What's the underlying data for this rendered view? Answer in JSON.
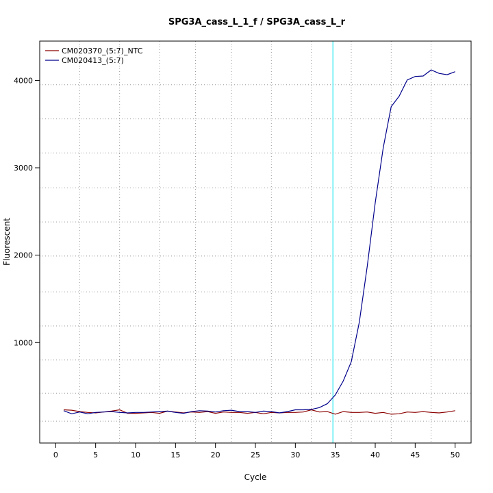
{
  "chart_data": {
    "type": "line",
    "title": "SPG3A_cass_L_1_f / SPG3A_cass_L_r",
    "xlabel": "Cycle",
    "ylabel": "Fluorescent",
    "xlim": [
      -2,
      52
    ],
    "ylim": [
      -150,
      4450
    ],
    "x_ticks": [
      0,
      5,
      10,
      15,
      20,
      25,
      30,
      35,
      40,
      45,
      50
    ],
    "y_ticks": [
      1000,
      2000,
      3000,
      4000
    ],
    "x_grid": [
      3,
      8,
      13,
      17.5,
      22,
      27,
      32,
      37,
      42,
      47
    ],
    "y_grid": [
      100,
      420,
      800,
      1190,
      1580,
      1990,
      2380,
      2770,
      3170,
      3560,
      3950
    ],
    "threshold_x": 34.7,
    "threshold_color": "#00e5ee",
    "legend_position": "top-left",
    "series": [
      {
        "name": "CM020370_(5:7)_NTC",
        "color": "#8b0000",
        "x": [
          1,
          2,
          3,
          4,
          5,
          6,
          7,
          8,
          9,
          10,
          11,
          12,
          13,
          14,
          15,
          16,
          17,
          18,
          19,
          20,
          21,
          22,
          23,
          24,
          25,
          26,
          27,
          28,
          29,
          30,
          31,
          32,
          33,
          34,
          35,
          36,
          37,
          38,
          39,
          40,
          41,
          42,
          43,
          44,
          45,
          46,
          47,
          48,
          49,
          50
        ],
        "y": [
          230,
          225,
          210,
          200,
          195,
          205,
          215,
          230,
          190,
          190,
          195,
          200,
          190,
          215,
          205,
          195,
          205,
          200,
          210,
          190,
          205,
          200,
          200,
          190,
          200,
          185,
          200,
          195,
          200,
          200,
          205,
          230,
          205,
          210,
          180,
          210,
          200,
          200,
          205,
          190,
          200,
          180,
          185,
          205,
          200,
          210,
          200,
          195,
          205,
          220
        ]
      },
      {
        "name": "CM020413_(5:7)",
        "color": "#00008b",
        "x": [
          1,
          2,
          3,
          4,
          5,
          6,
          7,
          8,
          9,
          10,
          11,
          12,
          13,
          14,
          15,
          16,
          17,
          18,
          19,
          20,
          21,
          22,
          23,
          24,
          25,
          26,
          27,
          28,
          29,
          30,
          31,
          32,
          33,
          34,
          35,
          36,
          37,
          38,
          39,
          40,
          41,
          42,
          43,
          44,
          45,
          46,
          47,
          48,
          49,
          50
        ],
        "y": [
          220,
          185,
          205,
          185,
          200,
          205,
          210,
          200,
          195,
          200,
          200,
          205,
          210,
          215,
          200,
          190,
          210,
          220,
          215,
          205,
          220,
          225,
          210,
          210,
          200,
          215,
          210,
          195,
          210,
          230,
          230,
          235,
          255,
          300,
          400,
          560,
          780,
          1230,
          1870,
          2600,
          3230,
          3700,
          3820,
          4005,
          4045,
          4050,
          4120,
          4080,
          4065,
          4100
        ]
      }
    ]
  }
}
